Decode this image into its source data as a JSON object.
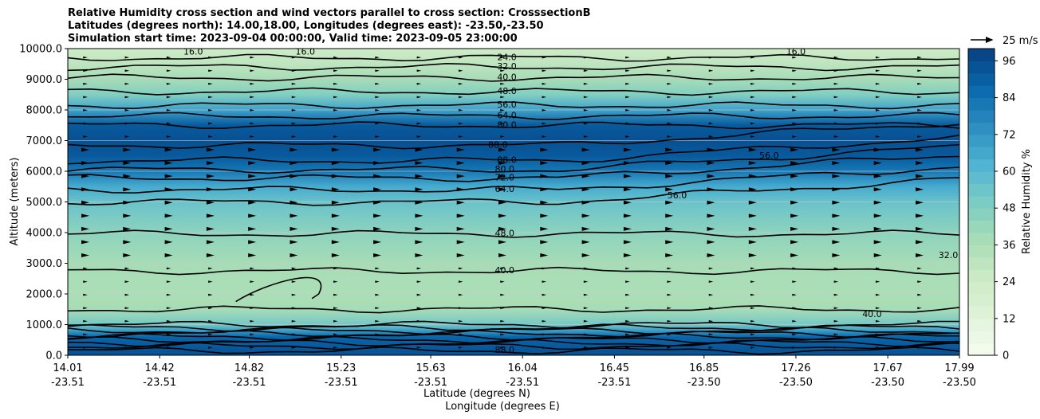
{
  "chart_data": {
    "type": "heatmap",
    "title_lines": [
      "Relative Humidity cross section and wind vectors parallel to cross section: CrosssectionB",
      "Latitudes (degrees north): 14.00,18.00, Longitudes (degrees east): -23.50,-23.50",
      "Simulation start time: 2023-09-04 00:00:00, Valid time: 2023-09-05 23:00:00"
    ],
    "ylabel": "Altitude (meters)",
    "xlabel_lat": "Latitude (degrees N)",
    "xlabel_lon": "Longitude (degrees E)",
    "ylim": [
      0,
      10000
    ],
    "y_ticks": [
      "0.0",
      "1000.0",
      "2000.0",
      "3000.0",
      "4000.0",
      "5000.0",
      "6000.0",
      "7000.0",
      "8000.0",
      "9000.0",
      "10000.0"
    ],
    "y_tick_values": [
      0,
      1000,
      2000,
      3000,
      4000,
      5000,
      6000,
      7000,
      8000,
      9000,
      10000
    ],
    "x_ticks_lat": [
      "14.01",
      "14.42",
      "14.82",
      "15.23",
      "15.63",
      "16.04",
      "16.45",
      "16.85",
      "17.26",
      "17.67",
      "17.99"
    ],
    "x_ticks_lon": [
      "-23.51",
      "-23.51",
      "-23.51",
      "-23.51",
      "-23.51",
      "-23.51",
      "-23.51",
      "-23.50",
      "-23.50",
      "-23.50",
      "-23.50"
    ],
    "colorbar": {
      "label": "Relative Humidity %",
      "ticks": [
        "0",
        "12",
        "24",
        "36",
        "48",
        "60",
        "72",
        "84",
        "96"
      ],
      "tick_values": [
        0,
        12,
        24,
        36,
        48,
        60,
        72,
        84,
        96
      ],
      "range": [
        0,
        100
      ],
      "colors": [
        "#f7fcf0",
        "#e0f3db",
        "#ccebc5",
        "#a8ddb5",
        "#7bccc4",
        "#4eb3d3",
        "#2b8cbe",
        "#0868ac",
        "#084081"
      ]
    },
    "rh_profile": {
      "altitude_m": [
        0,
        300,
        600,
        800,
        1000,
        1500,
        2000,
        3000,
        4000,
        5000,
        5500,
        6000,
        6500,
        7000,
        7500,
        8000,
        8500,
        9000,
        9500,
        10000
      ],
      "rh_percent": [
        95,
        92,
        88,
        70,
        52,
        38,
        36,
        38,
        45,
        55,
        65,
        82,
        92,
        95,
        92,
        68,
        48,
        38,
        30,
        24
      ]
    },
    "contour_labels": [
      {
        "text": "16.0",
        "x": 14.57,
        "alt": 9880
      },
      {
        "text": "16.0",
        "x": 15.07,
        "alt": 9880
      },
      {
        "text": "16.0",
        "x": 17.26,
        "alt": 9880
      },
      {
        "text": "24.0",
        "x": 15.97,
        "alt": 9700
      },
      {
        "text": "32.0",
        "x": 15.97,
        "alt": 9400
      },
      {
        "text": "40.0",
        "x": 15.97,
        "alt": 9050
      },
      {
        "text": "48.0",
        "x": 15.97,
        "alt": 8600
      },
      {
        "text": "56.0",
        "x": 15.97,
        "alt": 8150
      },
      {
        "text": "64.0",
        "x": 15.97,
        "alt": 7800
      },
      {
        "text": "80.0",
        "x": 15.97,
        "alt": 7500
      },
      {
        "text": "88.0",
        "x": 15.93,
        "alt": 6850
      },
      {
        "text": "88.0",
        "x": 15.97,
        "alt": 6350
      },
      {
        "text": "80.0",
        "x": 15.96,
        "alt": 6050
      },
      {
        "text": "72.0",
        "x": 15.96,
        "alt": 5780
      },
      {
        "text": "64.0",
        "x": 15.96,
        "alt": 5400
      },
      {
        "text": "56.0",
        "x": 17.14,
        "alt": 6500
      },
      {
        "text": "56.0",
        "x": 16.73,
        "alt": 5200
      },
      {
        "text": "48.0",
        "x": 15.96,
        "alt": 3960
      },
      {
        "text": "40.0",
        "x": 15.96,
        "alt": 2750
      },
      {
        "text": "32.0",
        "x": 17.94,
        "alt": 3250
      },
      {
        "text": "40.0",
        "x": 17.6,
        "alt": 1330
      },
      {
        "text": "88.0",
        "x": 15.96,
        "alt": 150
      }
    ]
  }
}
